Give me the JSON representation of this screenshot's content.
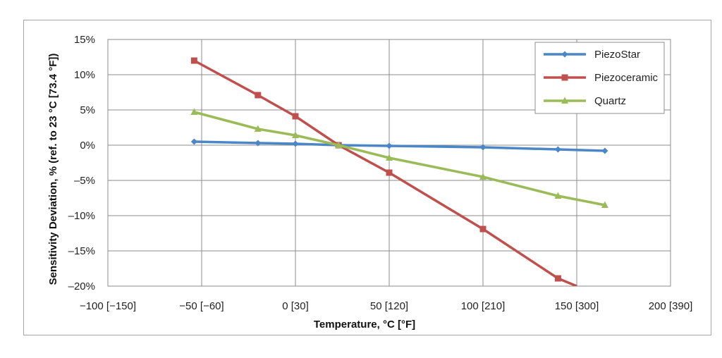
{
  "chart_data": {
    "type": "line",
    "xlabel": "Temperature, °C [°F]",
    "ylabel": "Sensitivity Deviation, % (ref. to 23 °C [73.4 °F])",
    "xlim": [
      -100,
      200
    ],
    "ylim": [
      -20,
      15
    ],
    "x_ticks": [
      {
        "value": -100,
        "label": "−100 [−150]"
      },
      {
        "value": -50,
        "label": "−50 [−60]"
      },
      {
        "value": 0,
        "label": "0 [30]"
      },
      {
        "value": 50,
        "label": "50 [120]"
      },
      {
        "value": 100,
        "label": "100 [210]"
      },
      {
        "value": 150,
        "label": "150 [300]"
      },
      {
        "value": 200,
        "label": "200 [390]"
      }
    ],
    "y_ticks": [
      {
        "value": 15,
        "label": "15%"
      },
      {
        "value": 10,
        "label": "10%"
      },
      {
        "value": 5,
        "label": "5%"
      },
      {
        "value": 0,
        "label": "0%"
      },
      {
        "value": -5,
        "label": "–5%"
      },
      {
        "value": -10,
        "label": "–10%"
      },
      {
        "value": -15,
        "label": "–15%"
      },
      {
        "value": -20,
        "label": "–20%"
      }
    ],
    "grid": true,
    "legend_position": "top-right",
    "series": [
      {
        "name": "PiezoStar",
        "color": "#4a86c8",
        "marker": "diamond",
        "x": [
          -54,
          -20,
          0,
          23,
          50,
          100,
          140,
          165
        ],
        "y": [
          0.5,
          0.3,
          0.2,
          0.0,
          -0.1,
          -0.3,
          -0.6,
          -0.8
        ]
      },
      {
        "name": "Piezoceramic",
        "color": "#c0504d",
        "marker": "square",
        "x": [
          -54,
          -20,
          0,
          23,
          50,
          100,
          140,
          150
        ],
        "y": [
          12.0,
          7.1,
          4.1,
          0.0,
          -3.9,
          -11.9,
          -18.9,
          -20.0
        ]
      },
      {
        "name": "Quartz",
        "color": "#9bbb59",
        "marker": "triangle",
        "x": [
          -54,
          -20,
          0,
          23,
          50,
          100,
          140,
          165
        ],
        "y": [
          4.7,
          2.3,
          1.4,
          0.0,
          -1.8,
          -4.5,
          -7.2,
          -8.5
        ]
      }
    ]
  }
}
